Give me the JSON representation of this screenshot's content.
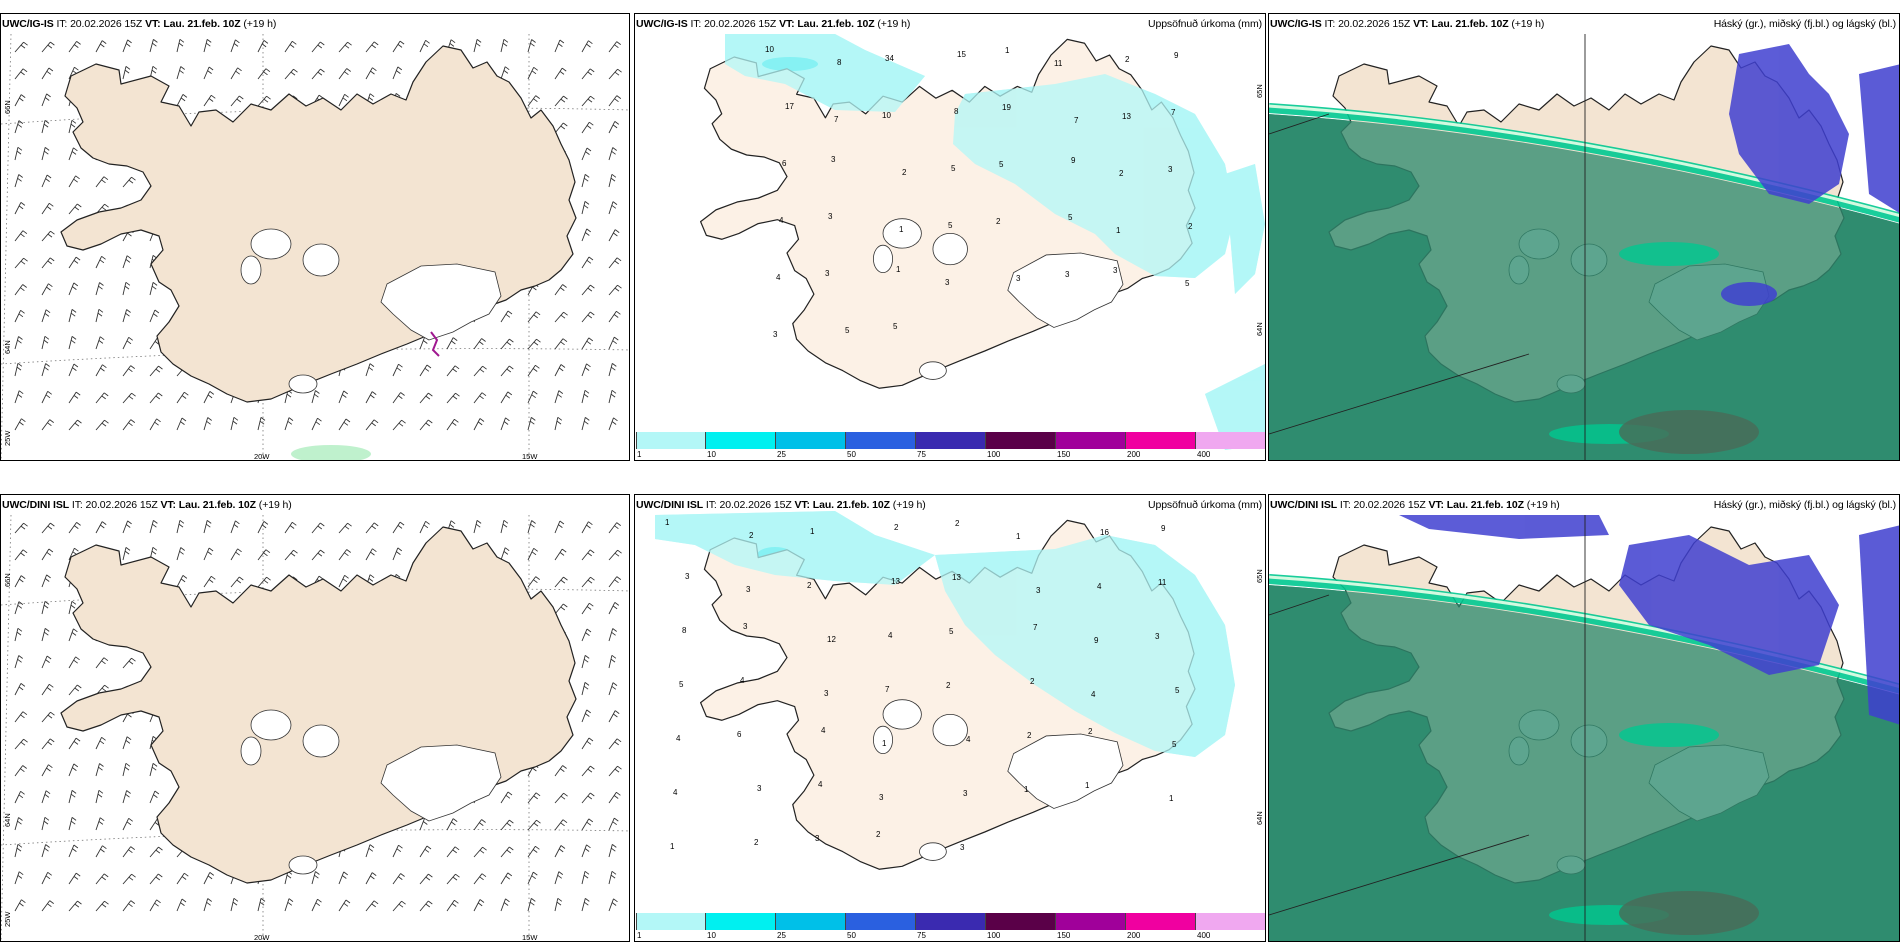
{
  "panels": [
    {
      "model": "UWC/IG-IS",
      "it_label": "IT:",
      "it_value": "20.02.2026 15Z",
      "vt_label": "VT:",
      "vt_value": "Lau. 21.feb. 10Z",
      "lead": "(+19 h)",
      "title_right": ""
    },
    {
      "model": "UWC/IG-IS",
      "it_label": "IT:",
      "it_value": "20.02.2026 15Z",
      "vt_label": "VT:",
      "vt_value": "Lau. 21.feb. 10Z",
      "lead": "(+19 h)",
      "title_right": "Uppsöfnuð úrkoma (mm)"
    },
    {
      "model": "UWC/IG-IS",
      "it_label": "IT:",
      "it_value": "20.02.2026 15Z",
      "vt_label": "VT:",
      "vt_value": "Lau. 21.feb. 10Z",
      "lead": "(+19 h)",
      "title_right": "Háský (gr.), miðský (fj.bl.) og lágský (bl.)"
    },
    {
      "model": "UWC/DINI ISL",
      "it_label": "IT:",
      "it_value": "20.02.2026 15Z",
      "vt_label": "VT:",
      "vt_value": "Lau. 21.feb. 10Z",
      "lead": "(+19 h)",
      "title_right": ""
    },
    {
      "model": "UWC/DINI ISL",
      "it_label": "IT:",
      "it_value": "20.02.2026 15Z",
      "vt_label": "VT:",
      "vt_value": "Lau. 21.feb. 10Z",
      "lead": "(+19 h)",
      "title_right": "Uppsöfnuð úrkoma (mm)"
    },
    {
      "model": "UWC/DINI ISL",
      "it_label": "IT:",
      "it_value": "20.02.2026 15Z",
      "vt_label": "VT:",
      "vt_value": "Lau. 21.feb. 10Z",
      "lead": "(+19 h)",
      "title_right": "Háský (gr.), miðský (fj.bl.) og lágský (bl.)"
    }
  ],
  "wind_axes": {
    "top": {
      "lon_a": "20W",
      "lon_b": "15W",
      "lat_a": "66N",
      "lat_b": "64N",
      "lat_c": "25W"
    },
    "bottom": {
      "lon_a": "20W",
      "lon_b": "15W",
      "lat_a": "66N",
      "lat_b": "64N",
      "lat_c": "25W"
    }
  },
  "precip_axes": {
    "top": {
      "lat_a": "65N",
      "lat_b": "64N"
    },
    "bottom": {
      "lat_a": "65N",
      "lat_b": "64N"
    }
  },
  "colorbar": {
    "labels": [
      "1",
      "10",
      "25",
      "50",
      "75",
      "100",
      "150",
      "200",
      "400"
    ],
    "colors": [
      "#b3f7f7",
      "#00f0f0",
      "#00c0e8",
      "#2a60e0",
      "#3a2ab0",
      "#5a0048",
      "#a0009a",
      "#f000a0",
      "#f0a8f0"
    ]
  },
  "colors": {
    "land": "#f3e4d2",
    "land_precip": "#fcf1e6",
    "glacier": "#ffffff",
    "precip_light": "#b3f7f7",
    "precip_mid": "#00e0e8",
    "cloud_high": "#2f8c70",
    "cloud_mid": "#3f3fd0",
    "cloud_low": "#00c890"
  },
  "precip_top_numbers": [
    "10",
    "8",
    "34",
    "15",
    "1",
    "11",
    "2",
    "9",
    "17",
    "7",
    "10",
    "8",
    "19",
    "7",
    "13",
    "7",
    "6",
    "3",
    "2",
    "5",
    "5",
    "9",
    "2",
    "3",
    "4",
    "3",
    "1",
    "5",
    "2",
    "5",
    "1",
    "2",
    "4",
    "3",
    "1",
    "3",
    "3",
    "3",
    "3",
    "5",
    "3",
    "5",
    "5"
  ],
  "precip_bottom_numbers": [
    "1",
    "2",
    "1",
    "2",
    "2",
    "1",
    "16",
    "9",
    "3",
    "3",
    "2",
    "13",
    "13",
    "3",
    "4",
    "11",
    "8",
    "3",
    "12",
    "4",
    "5",
    "7",
    "9",
    "3",
    "5",
    "4",
    "3",
    "7",
    "2",
    "2",
    "4",
    "5",
    "4",
    "6",
    "4",
    "1",
    "4",
    "2",
    "2",
    "5",
    "4",
    "3",
    "4",
    "3",
    "3",
    "1",
    "1",
    "1",
    "1",
    "2",
    "3",
    "2",
    "3"
  ]
}
